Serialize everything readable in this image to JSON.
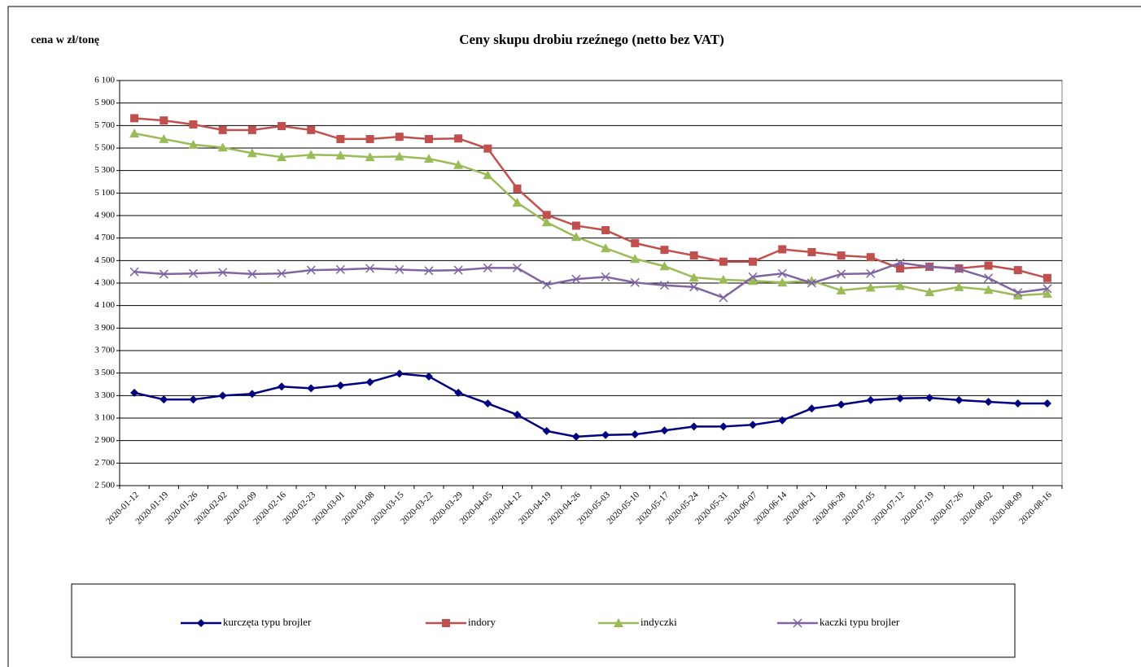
{
  "chart_data": {
    "type": "line",
    "title": "Ceny skupu drobiu rzeźnego (netto bez VAT)",
    "y_label": "cena w zł/tonę",
    "categories": [
      "2020-01-12",
      "2020-01-19",
      "2020-01-26",
      "2020-02-02",
      "2020-02-09",
      "2020-02-16",
      "2020-02-23",
      "2020-03-01",
      "2020-03-08",
      "2020-03-15",
      "2020-03-22",
      "2020-03-29",
      "2020-04-05",
      "2020-04-12",
      "2020-04-19",
      "2020-04-26",
      "2020-05-03",
      "2020-05-10",
      "2020-05-17",
      "2020-05-24",
      "2020-05-31",
      "2020-06-07",
      "2020-06-14",
      "2020-06-21",
      "2020-06-28",
      "2020-07-05",
      "2020-07-12",
      "2020-07-19",
      "2020-07-26",
      "2020-08-02",
      "2020-08-09",
      "2020-08-16"
    ],
    "series": [
      {
        "name": "kurczęta typu brojler",
        "color": "#000080",
        "marker": "diamond",
        "values": [
          3325,
          3265,
          3265,
          3300,
          3315,
          3380,
          3365,
          3390,
          3420,
          3495,
          3470,
          3325,
          3230,
          3130,
          2985,
          2935,
          2950,
          2955,
          2990,
          3025,
          3025,
          3040,
          3080,
          3185,
          3220,
          3260,
          3275,
          3280,
          3260,
          3245,
          3230,
          3230
        ]
      },
      {
        "name": "indory",
        "color": "#c0504d",
        "marker": "square",
        "values": [
          5765,
          5745,
          5710,
          5660,
          5660,
          5695,
          5660,
          5580,
          5580,
          5600,
          5580,
          5585,
          5495,
          5140,
          4905,
          4810,
          4770,
          4655,
          4595,
          4545,
          4490,
          4490,
          4600,
          4575,
          4545,
          4530,
          4430,
          4445,
          4430,
          4455,
          4415,
          4345
        ]
      },
      {
        "name": "indyczki",
        "color": "#9bbb59",
        "marker": "triangle",
        "values": [
          5630,
          5580,
          5530,
          5505,
          5455,
          5420,
          5440,
          5435,
          5420,
          5425,
          5405,
          5350,
          5260,
          5015,
          4840,
          4710,
          4610,
          4515,
          4450,
          4350,
          4330,
          4320,
          4305,
          4320,
          4235,
          4260,
          4275,
          4220,
          4265,
          4240,
          4190,
          4205
        ]
      },
      {
        "name": "kaczki typu brojler",
        "color": "#8064a2",
        "marker": "x",
        "values": [
          4400,
          4380,
          4385,
          4395,
          4380,
          4385,
          4415,
          4420,
          4430,
          4420,
          4410,
          4415,
          4435,
          4435,
          4285,
          4335,
          4355,
          4305,
          4280,
          4265,
          4170,
          4355,
          4385,
          4300,
          4380,
          4385,
          4480,
          4445,
          4425,
          4345,
          4215,
          4250
        ]
      }
    ],
    "ylim": [
      2500,
      6100
    ],
    "yticks": [
      {
        "value": 2500,
        "label": "2 500"
      },
      {
        "value": 2700,
        "label": "2 700"
      },
      {
        "value": 2900,
        "label": "2 900"
      },
      {
        "value": 3100,
        "label": "3 100"
      },
      {
        "value": 3300,
        "label": "3 300"
      },
      {
        "value": 3500,
        "label": "3 500"
      },
      {
        "value": 3700,
        "label": "3 700"
      },
      {
        "value": 3900,
        "label": "3 900"
      },
      {
        "value": 4100,
        "label": "4 100"
      },
      {
        "value": 4300,
        "label": "4 300"
      },
      {
        "value": 4500,
        "label": "4 500"
      },
      {
        "value": 4700,
        "label": "4 700"
      },
      {
        "value": 4900,
        "label": "4 900"
      },
      {
        "value": 5100,
        "label": "5 100"
      },
      {
        "value": 5300,
        "label": "5 300"
      },
      {
        "value": 5500,
        "label": "5 500"
      },
      {
        "value": 5700,
        "label": "5 700"
      },
      {
        "value": 5900,
        "label": "5 900"
      },
      {
        "value": 6100,
        "label": "6 100"
      }
    ],
    "grid": true,
    "legend": "bottom"
  }
}
